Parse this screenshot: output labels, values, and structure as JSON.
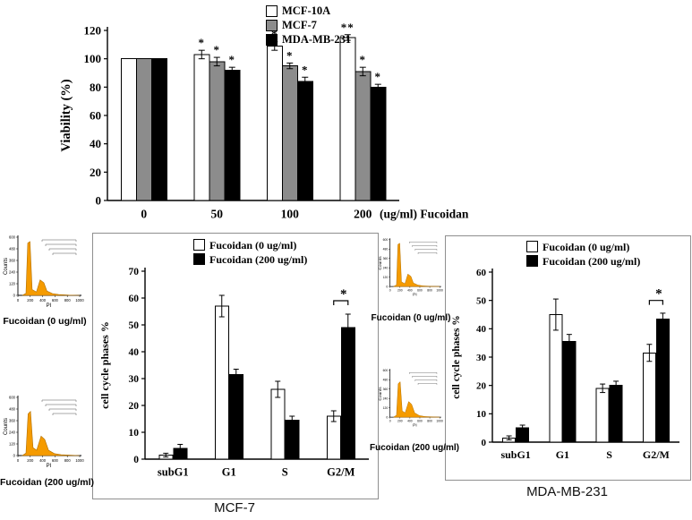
{
  "chart_data": [
    {
      "id": "viability",
      "type": "bar",
      "title": "",
      "ylabel": "Viability (%)",
      "xlabel": "(ug/ml) Fucoidan",
      "ylim": [
        0,
        120
      ],
      "yticks": [
        0,
        20,
        40,
        60,
        80,
        100,
        120
      ],
      "categories": [
        "0",
        "50",
        "100",
        "200"
      ],
      "legend_position": "top-right",
      "series": [
        {
          "name": "MCF-10A",
          "color": "#ffffff",
          "values": [
            100,
            103,
            109,
            115
          ],
          "errors": [
            0,
            3,
            3,
            2
          ],
          "sig": [
            "",
            "*",
            "*",
            "**"
          ]
        },
        {
          "name": "MCF-7",
          "color": "#8c8c8c",
          "values": [
            100,
            98,
            95,
            91
          ],
          "errors": [
            0,
            3,
            2,
            3
          ],
          "sig": [
            "",
            "*",
            "*",
            "*"
          ]
        },
        {
          "name": "MDA-MB-231",
          "color": "#000000",
          "values": [
            100,
            92,
            84,
            80
          ],
          "errors": [
            0,
            2,
            3,
            2
          ],
          "sig": [
            "",
            "*",
            "*",
            "*"
          ]
        }
      ]
    },
    {
      "id": "mcf7",
      "type": "bar",
      "title": "MCF-7",
      "ylabel": "cell cycle phases %",
      "xlabel": "",
      "ylim": [
        0,
        70
      ],
      "yticks": [
        0,
        10,
        20,
        30,
        40,
        50,
        60,
        70
      ],
      "categories": [
        "subG1",
        "G1",
        "S",
        "G2/M"
      ],
      "legend_position": "top",
      "series": [
        {
          "name": "Fucoidan (0 ug/ml)",
          "color": "#ffffff",
          "values": [
            1.5,
            57,
            26,
            16
          ],
          "errors": [
            0.7,
            4,
            3,
            2
          ]
        },
        {
          "name": "Fucoidan (200 ug/ml)",
          "color": "#000000",
          "values": [
            4,
            31.5,
            14.5,
            49
          ],
          "errors": [
            1.5,
            2,
            1.5,
            5
          ]
        }
      ],
      "significance": {
        "category": "G2/M",
        "label": "*",
        "height": 59
      }
    },
    {
      "id": "mda",
      "type": "bar",
      "title": "MDA-MB-231",
      "ylabel": "cell cycle phases %",
      "xlabel": "",
      "ylim": [
        0,
        60
      ],
      "yticks": [
        0,
        10,
        20,
        30,
        40,
        50,
        60
      ],
      "categories": [
        "subG1",
        "G1",
        "S",
        "G2/M"
      ],
      "legend_position": "top",
      "series": [
        {
          "name": "Fucoidan (0 ug/ml)",
          "color": "#ffffff",
          "values": [
            1.5,
            45,
            19,
            31.5
          ],
          "errors": [
            0.7,
            5.5,
            1.5,
            3
          ]
        },
        {
          "name": "Fucoidan (200 ug/ml)",
          "color": "#000000",
          "values": [
            5,
            35.5,
            20,
            43.5
          ],
          "errors": [
            1,
            2.5,
            1.5,
            2
          ]
        }
      ],
      "significance": {
        "category": "G2/M",
        "label": "*",
        "height": 50
      }
    }
  ],
  "flow_plots": [
    {
      "label": "Fucoidan (0 ug/ml)",
      "xlabel": "PI",
      "ylabel": "Counts",
      "xticks": [
        0,
        200,
        400,
        600,
        800,
        1000
      ],
      "yticks": [
        0,
        120,
        240,
        360,
        480,
        600
      ],
      "peak_color": "#f59b00",
      "variant": "control"
    },
    {
      "label": "Fucoidan (200 ug/ml)",
      "xlabel": "PI",
      "ylabel": "Counts",
      "xticks": [
        0,
        200,
        400,
        600,
        800,
        1000
      ],
      "yticks": [
        0,
        120,
        240,
        360,
        480,
        600
      ],
      "peak_color": "#f59b00",
      "variant": "treated"
    },
    {
      "label": "Fucoidan (0 ug/ml)",
      "xlabel": "PI",
      "ylabel": "Counts",
      "xticks": [
        0,
        200,
        400,
        600,
        800,
        1000
      ],
      "yticks": [
        0,
        120,
        240,
        360,
        480,
        600
      ],
      "peak_color": "#f59b00",
      "variant": "control"
    },
    {
      "label": "Fucoidan (200 ug/ml)",
      "xlabel": "PI",
      "ylabel": "Counts",
      "xticks": [
        0,
        200,
        400,
        600,
        800,
        1000
      ],
      "yticks": [
        0,
        120,
        240,
        360,
        480,
        600
      ],
      "peak_color": "#f59b00",
      "variant": "treated"
    }
  ],
  "colors": {
    "axis": "#000000",
    "box_border": "#8f8f8f",
    "gray_bar": "#8c8c8c",
    "peak_stroke": "#b06f00"
  }
}
